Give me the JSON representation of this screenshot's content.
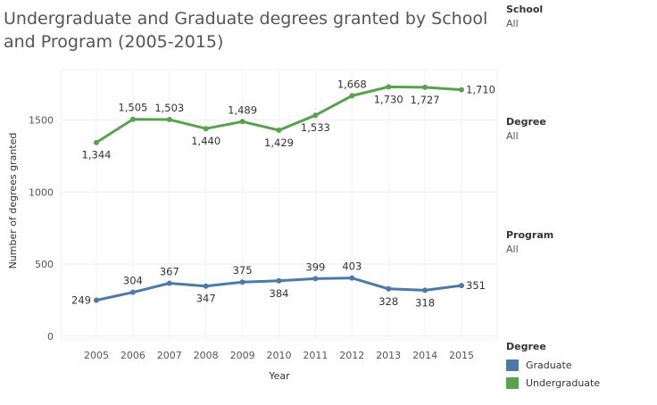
{
  "title": "Undergraduate and Graduate degrees granted by School and Program (2005-2015)",
  "filters": [
    {
      "label": "School",
      "value": "All"
    },
    {
      "label": "Degree",
      "value": "All"
    },
    {
      "label": "Program",
      "value": "All"
    }
  ],
  "legend": {
    "title": "Degree",
    "items": [
      {
        "label": "Graduate",
        "color": "#4e79a7"
      },
      {
        "label": "Undergraduate",
        "color": "#59a14f"
      }
    ]
  },
  "chart_data": {
    "type": "line",
    "xlabel": "Year",
    "ylabel": "Number of degrees granted",
    "x": [
      "2005",
      "2006",
      "2007",
      "2008",
      "2009",
      "2010",
      "2011",
      "2012",
      "2013",
      "2014",
      "2015"
    ],
    "yticks": [
      0,
      500,
      1000,
      1500
    ],
    "ylim": [
      -20,
      1850
    ],
    "grid": true,
    "series": [
      {
        "name": "Graduate",
        "color": "#4e79a7",
        "values": [
          249,
          304,
          367,
          347,
          375,
          384,
          399,
          403,
          328,
          318,
          351
        ],
        "labels": [
          "249",
          "304",
          "367",
          "347",
          "375",
          "384",
          "399",
          "403",
          "328",
          "318",
          "351"
        ]
      },
      {
        "name": "Undergraduate",
        "color": "#59a14f",
        "values": [
          1344,
          1505,
          1503,
          1440,
          1489,
          1429,
          1533,
          1668,
          1730,
          1727,
          1710
        ],
        "labels": [
          "1,344",
          "1,505",
          "1,503",
          "1,440",
          "1,489",
          "1,429",
          "1,533",
          "1,668",
          "1,730",
          "1,727",
          "1,710"
        ]
      }
    ]
  }
}
